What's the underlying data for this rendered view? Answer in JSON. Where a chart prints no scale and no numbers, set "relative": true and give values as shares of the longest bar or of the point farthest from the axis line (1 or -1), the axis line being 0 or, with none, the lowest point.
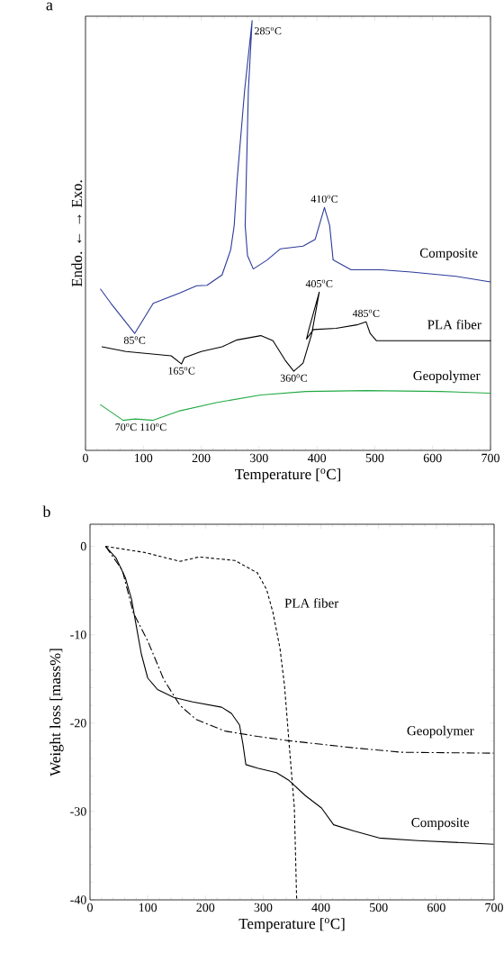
{
  "chart_data": [
    {
      "type": "line",
      "relative": true,
      "xlabel": "Temperature [$^{o}$C]",
      "ylabel": "Endo. ←     → Exo.",
      "xlim": [
        0,
        700
      ],
      "xticks": [
        0,
        100,
        200,
        300,
        400,
        500,
        600,
        700
      ],
      "tick_labels": "x",
      "series": [
        {
          "name": "Composite",
          "color": "#2b3a9a",
          "x": [
            26,
            44,
            85,
            117,
            163,
            192,
            210,
            236,
            251,
            257,
            262,
            275,
            288,
            281.5,
            276,
            280,
            290,
            314,
            337,
            376,
            397,
            413,
            422,
            428,
            459,
            511,
            563,
            640,
            700
          ],
          "values": [
            0.375,
            0.342,
            0.272,
            0.342,
            0.366,
            0.383,
            0.384,
            0.408,
            0.467,
            0.523,
            0.628,
            0.837,
            1,
            0.837,
            0.523,
            0.453,
            0.422,
            0.443,
            0.469,
            0.475,
            0.491,
            0.565,
            0.523,
            0.443,
            0.42,
            0.42,
            0.415,
            0.405,
            0.392
          ]
        },
        {
          "name": "PLA fiber",
          "color": "#000000",
          "x": [
            28.5,
            70,
            148,
            166,
            171,
            200,
            236,
            262,
            303,
            324,
            345,
            360,
            376,
            391,
            404,
            386,
            382,
            394,
            433,
            469,
            485,
            492,
            503,
            563,
            700
          ],
          "values": [
            0.241,
            0.23,
            0.22,
            0.201,
            0.216,
            0.23,
            0.241,
            0.257,
            0.267,
            0.255,
            0.21,
            0.184,
            0.203,
            0.271,
            0.368,
            0.281,
            0.259,
            0.281,
            0.284,
            0.292,
            0.299,
            0.272,
            0.255,
            0.255,
            0.255
          ]
        },
        {
          "name": "Geopolymer",
          "color": "#22aa44",
          "x": [
            26,
            65,
            86,
            117,
            163,
            226,
            303,
            381,
            485,
            614,
            700
          ],
          "values": [
            0.106,
            0.07,
            0.073,
            0.07,
            0.092,
            0.111,
            0.129,
            0.137,
            0.139,
            0.137,
            0.133
          ]
        }
      ],
      "annotations": [
        "a",
        {
          "text": "285$^{o}$C",
          "x": 288,
          "y": 1
        },
        {
          "text": "410$^{o}$C",
          "x": 413,
          "y": 0.565
        },
        {
          "text": "85$^{o}$C",
          "x": 85,
          "y": 0.272
        },
        {
          "text": "165$^{o}$C",
          "x": 166,
          "y": 0.201
        },
        {
          "text": "360$^{o}$C",
          "x": 360,
          "y": 0.184
        },
        {
          "text": "405$^{o}$C",
          "x": 404,
          "y": 0.368
        },
        {
          "text": "485$^{o}$C",
          "x": 485,
          "y": 0.299
        },
        {
          "text": "70$^{o}$C",
          "x": 70,
          "y": 0.07
        },
        {
          "text": "110$^{o}$C",
          "x": 117,
          "y": 0.07
        }
      ]
    },
    {
      "type": "line",
      "xlabel": "Temperature [$^{o}$C]",
      "ylabel": "Weight loss [mass%]",
      "xlim": [
        0,
        700
      ],
      "xticks": [
        0,
        100,
        200,
        300,
        400,
        500,
        600,
        700
      ],
      "ylim": [
        -40,
        2.5
      ],
      "yticks": [
        -40,
        -30,
        -20,
        -10,
        0
      ],
      "series": [
        {
          "name": "PLA fiber",
          "color": "#000000",
          "line_style": "dashed",
          "x": [
            27,
            95,
            156,
            189,
            251,
            290,
            306,
            317,
            329,
            337,
            345,
            354,
            358
          ],
          "values": [
            0,
            -0.7,
            -1.7,
            -1.2,
            -1.6,
            -3.0,
            -4.9,
            -7.5,
            -11.5,
            -15.8,
            -22.4,
            -29.6,
            -40
          ]
        },
        {
          "name": "Geopolymer",
          "color": "#000000",
          "line_style": "dashdot",
          "x": [
            27,
            56,
            75,
            100,
            128,
            156,
            184,
            234,
            290,
            345,
            401,
            457,
            540,
            699
          ],
          "values": [
            0,
            -2.7,
            -7.5,
            -10.7,
            -15.1,
            -18,
            -19.6,
            -20.9,
            -21.5,
            -22,
            -22.4,
            -22.8,
            -23.3,
            -23.4
          ]
        },
        {
          "name": "Composite",
          "color": "#000000",
          "line_style": "solid",
          "x": [
            27,
            45,
            61,
            72,
            81,
            89,
            100,
            117,
            145,
            178,
            228,
            245,
            259,
            265,
            270,
            290,
            323,
            345,
            373,
            401,
            422,
            457,
            501,
            568,
            699
          ],
          "values": [
            0,
            -1.3,
            -3.5,
            -6,
            -9.3,
            -12.2,
            -14.9,
            -16.2,
            -17.1,
            -17.6,
            -18.2,
            -18.9,
            -20.2,
            -22.4,
            -24.7,
            -25.1,
            -25.6,
            -26.5,
            -28.2,
            -29.6,
            -31.5,
            -32.2,
            -33.0,
            -33.3,
            -33.7
          ]
        }
      ],
      "annotations": [
        "b"
      ]
    }
  ]
}
